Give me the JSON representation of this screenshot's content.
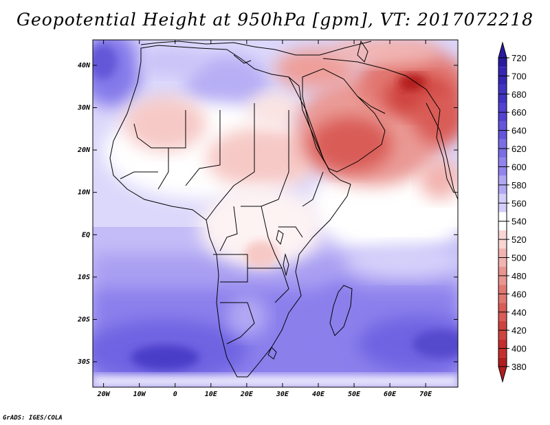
{
  "title": "Geopotential Height at 950hPa [gpm], VT: 2017072218",
  "credit": "GrADS: IGES/COLA",
  "map": {
    "variable": "Geopotential Height",
    "level": "950hPa",
    "units": "gpm",
    "valid_time": "2017072218",
    "lat_range": [
      -36,
      46
    ],
    "lon_range": [
      -23,
      79
    ],
    "lat_ticks": [
      {
        "value": 40,
        "label": "40N"
      },
      {
        "value": 30,
        "label": "30N"
      },
      {
        "value": 20,
        "label": "20N"
      },
      {
        "value": 10,
        "label": "10N"
      },
      {
        "value": 0,
        "label": "EQ"
      },
      {
        "value": -10,
        "label": "10S"
      },
      {
        "value": -20,
        "label": "20S"
      },
      {
        "value": -30,
        "label": "30S"
      }
    ],
    "lon_ticks": [
      {
        "value": -20,
        "label": "20W"
      },
      {
        "value": -10,
        "label": "10W"
      },
      {
        "value": 0,
        "label": "0"
      },
      {
        "value": 10,
        "label": "10E"
      },
      {
        "value": 20,
        "label": "20E"
      },
      {
        "value": 30,
        "label": "30E"
      },
      {
        "value": 40,
        "label": "40E"
      },
      {
        "value": 50,
        "label": "50E"
      },
      {
        "value": 60,
        "label": "60E"
      },
      {
        "value": 70,
        "label": "70E"
      }
    ]
  },
  "colorbar": {
    "levels": [
      {
        "label": "720",
        "color": "#2a1aa0"
      },
      {
        "label": "700",
        "color": "#3526b4"
      },
      {
        "label": "680",
        "color": "#4133c4"
      },
      {
        "label": "660",
        "color": "#5142d2"
      },
      {
        "label": "640",
        "color": "#6455dc"
      },
      {
        "label": "620",
        "color": "#7a6de6"
      },
      {
        "label": "600",
        "color": "#9184ee"
      },
      {
        "label": "580",
        "color": "#b1a8f4"
      },
      {
        "label": "560",
        "color": "#d3cefa"
      },
      {
        "label": "540",
        "color": "#ffffff"
      },
      {
        "label": "520",
        "color": "#f9d5d3"
      },
      {
        "label": "500",
        "color": "#f2b4b0"
      },
      {
        "label": "480",
        "color": "#ea9590"
      },
      {
        "label": "460",
        "color": "#e27872"
      },
      {
        "label": "440",
        "color": "#d95c56"
      },
      {
        "label": "420",
        "color": "#cf433e"
      },
      {
        "label": "400",
        "color": "#c42e2c"
      },
      {
        "label": "380",
        "color": "#b21d1d"
      }
    ]
  }
}
